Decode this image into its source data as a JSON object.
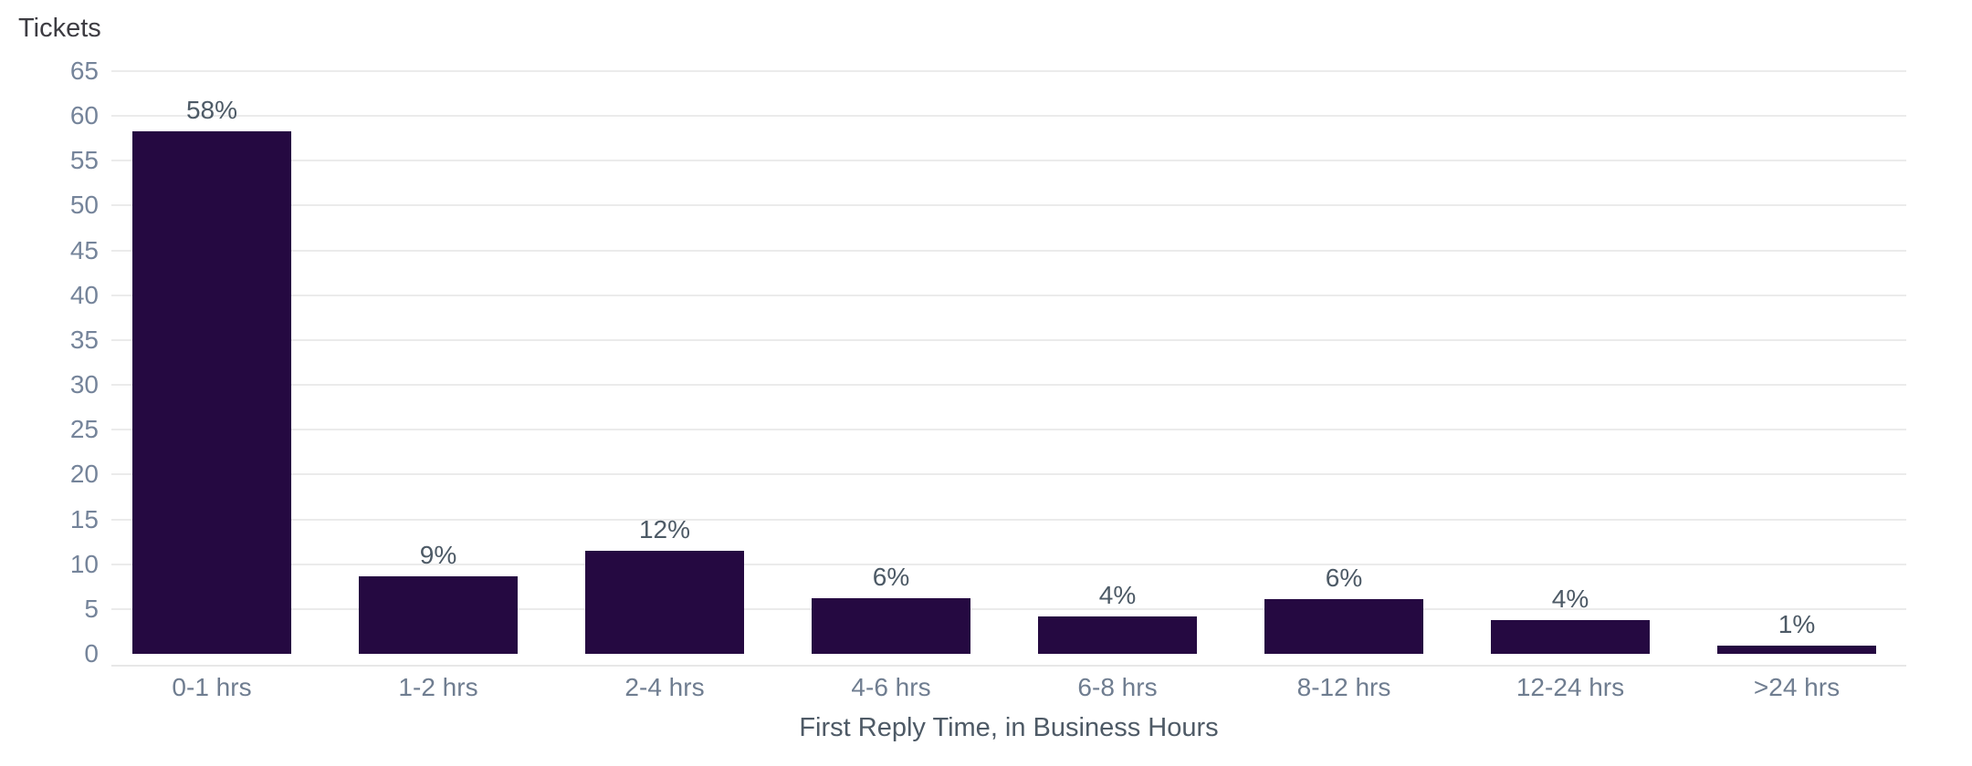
{
  "chart_data": {
    "type": "bar",
    "title": "",
    "ylabel": "Tickets",
    "xlabel": "First Reply Time, in Business Hours",
    "categories": [
      "0-1 hrs",
      "1-2 hrs",
      "2-4 hrs",
      "4-6 hrs",
      "6-8 hrs",
      "8-12 hrs",
      "12-24 hrs",
      ">24 hrs"
    ],
    "values": [
      58.3,
      8.6,
      11.5,
      6.2,
      4.2,
      6.1,
      3.8,
      0.9
    ],
    "bar_labels": [
      "58%",
      "9%",
      "12%",
      "6%",
      "4%",
      "6%",
      "4%",
      "1%"
    ],
    "ylim": [
      0,
      65
    ],
    "yticks": [
      0,
      5,
      10,
      15,
      20,
      25,
      30,
      35,
      40,
      45,
      50,
      55,
      60,
      65
    ],
    "grid": "horizontal",
    "legend": "none",
    "colors": {
      "bar": "#250941",
      "grid": "#ebebeb",
      "axis_line": "#e7e7e7",
      "y_axis_title": "#3d3c42",
      "y_tick_label": "#75849a",
      "bar_label": "#4d5a66",
      "x_tick_label": "#6f7d90",
      "x_axis_title": "#4e5a66"
    }
  }
}
